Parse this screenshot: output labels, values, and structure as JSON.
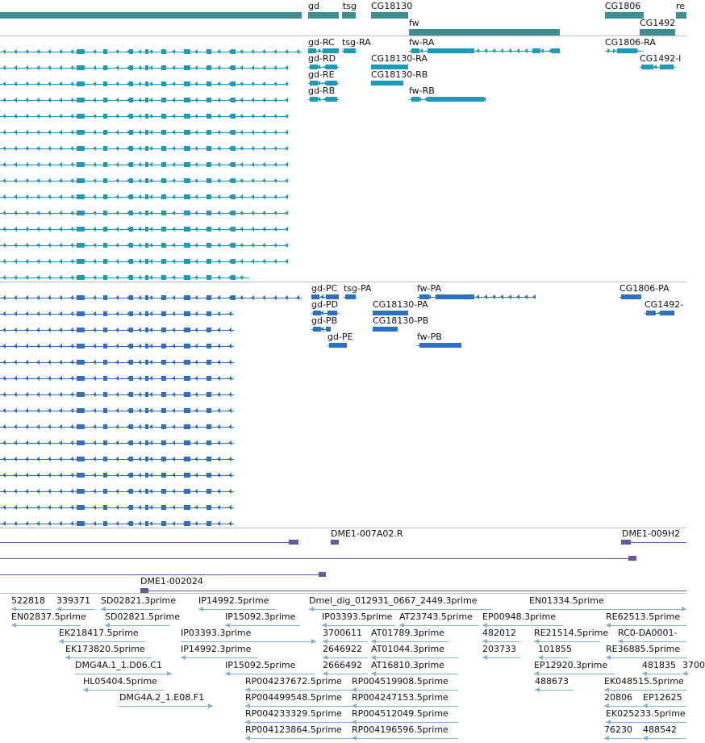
{
  "colors": {
    "gene": "#3d8f93",
    "tx_flybase": "#1a9cb8",
    "tx_refseq": "#2f6fc0",
    "clone": "#6b55a0",
    "est": "#7fb3d6",
    "divider": "#bdbdbd"
  },
  "genes": [
    "gd",
    "tsg",
    "CG18130",
    "fw",
    "CG1806",
    "CG1492",
    "re"
  ],
  "tx_flybase": [
    "gd-RC",
    "tsg-RA",
    "fw-RA",
    "CG1806-RA",
    "gd-RD",
    "CG18130-RA",
    "CG1492-I",
    "gd-RE",
    "CG18130-RB",
    "gd-RB",
    "fw-RB"
  ],
  "tx_refseq": [
    "gd-PC",
    "tsg-PA",
    "fw-PA",
    "CG1806-PA",
    "gd-PD",
    "CG18130-PA",
    "CG1492-",
    "gd-PB",
    "CG18130-PB",
    "gd-PE",
    "fw-PB"
  ],
  "clones": [
    "DME1-007A02.R",
    "DME1-009H2",
    "DME1-002024"
  ],
  "ests": [
    "522818",
    "339371",
    "SD02821.3prime",
    "IP14992.5prime",
    "Dmel_dig_012931_0667_2449.3prime",
    "EN01334.5prime",
    "EN02837.5prime",
    "SD02821.5prime",
    "IP15092.3prime",
    "IP03393.5prime",
    "AT23743.5prime",
    "EP00948.3prime",
    "RE62513.5prime",
    "EK218417.5prime",
    "IP03393.3prime",
    "3700611",
    "AT01789.3prime",
    "482012",
    "RE21514.5prime",
    "RC0-DA0001-",
    "EK173820.5prime",
    "IP14992.3prime",
    "2646922",
    "AT01044.3prime",
    "203733",
    "101855",
    "RE36885.5prime",
    "DMG4A.1_1.D06.C1",
    "IP15092.5prime",
    "2666492",
    "AT16810.3prime",
    "EP12920.3prime",
    "481835",
    "3700",
    "HL05404.5prime",
    "RP004237672.5prime",
    "RP004519908.5prime",
    "488673",
    "EK048515.5prime",
    "DMG4A.2_1.E08.F1",
    "RP004499548.5prime",
    "RP004247153.5prime",
    "20806",
    "EP12625",
    "RP004233329.5prime",
    "RP004512049.5prime",
    "EK025233.5prime",
    "RP004123864.5prime",
    "RP004196596.5prime",
    "76230",
    "488542"
  ]
}
